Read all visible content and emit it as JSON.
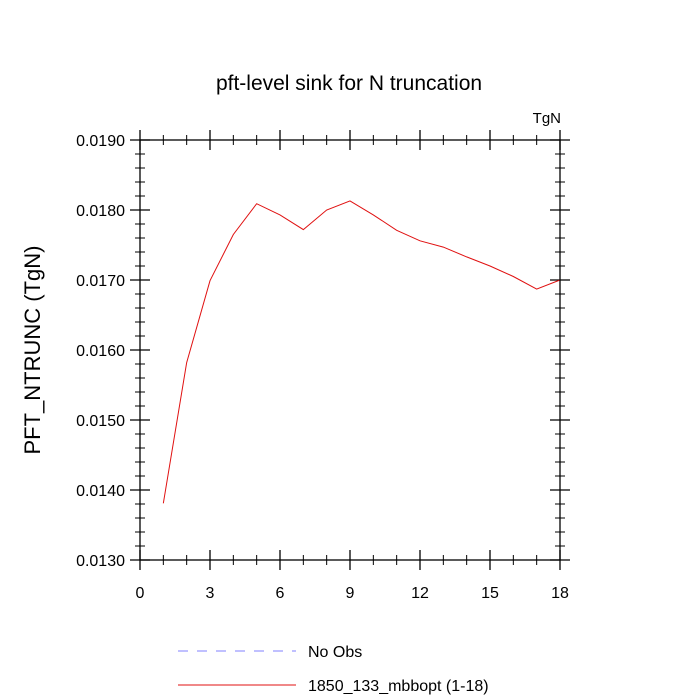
{
  "chart_data": {
    "type": "line",
    "title": "pft-level sink for N truncation",
    "units_label": "TgN",
    "xlabel": "",
    "ylabel": "PFT_NTRUNC  (TgN)",
    "xlim": [
      0,
      18
    ],
    "ylim": [
      0.013,
      0.019
    ],
    "x_ticks": [
      0,
      3,
      6,
      9,
      12,
      15,
      18
    ],
    "x_tick_labels": [
      "0",
      "3",
      "6",
      "9",
      "12",
      "15",
      "18"
    ],
    "y_ticks": [
      0.013,
      0.014,
      0.015,
      0.016,
      0.017,
      0.018,
      0.019
    ],
    "y_tick_labels": [
      "0.0130",
      "0.0140",
      "0.0150",
      "0.0160",
      "0.0170",
      "0.0180",
      "0.0190"
    ],
    "grid": false,
    "legend_position": "bottom",
    "series": [
      {
        "name": "No Obs",
        "color": "#8080ff",
        "dash": "dashed",
        "x": [],
        "y": []
      },
      {
        "name": "1850_133_mbbopt (1-18)",
        "color": "#e01010",
        "dash": "solid",
        "x": [
          1,
          2,
          3,
          4,
          5,
          6,
          7,
          8,
          9,
          10,
          11,
          12,
          13,
          14,
          15,
          16,
          17,
          18
        ],
        "y": [
          0.01381,
          0.01582,
          0.01699,
          0.01765,
          0.01809,
          0.01793,
          0.01772,
          0.018,
          0.01813,
          0.01793,
          0.01771,
          0.01756,
          0.01747,
          0.01733,
          0.0172,
          0.01705,
          0.01687,
          0.017
        ]
      }
    ]
  }
}
